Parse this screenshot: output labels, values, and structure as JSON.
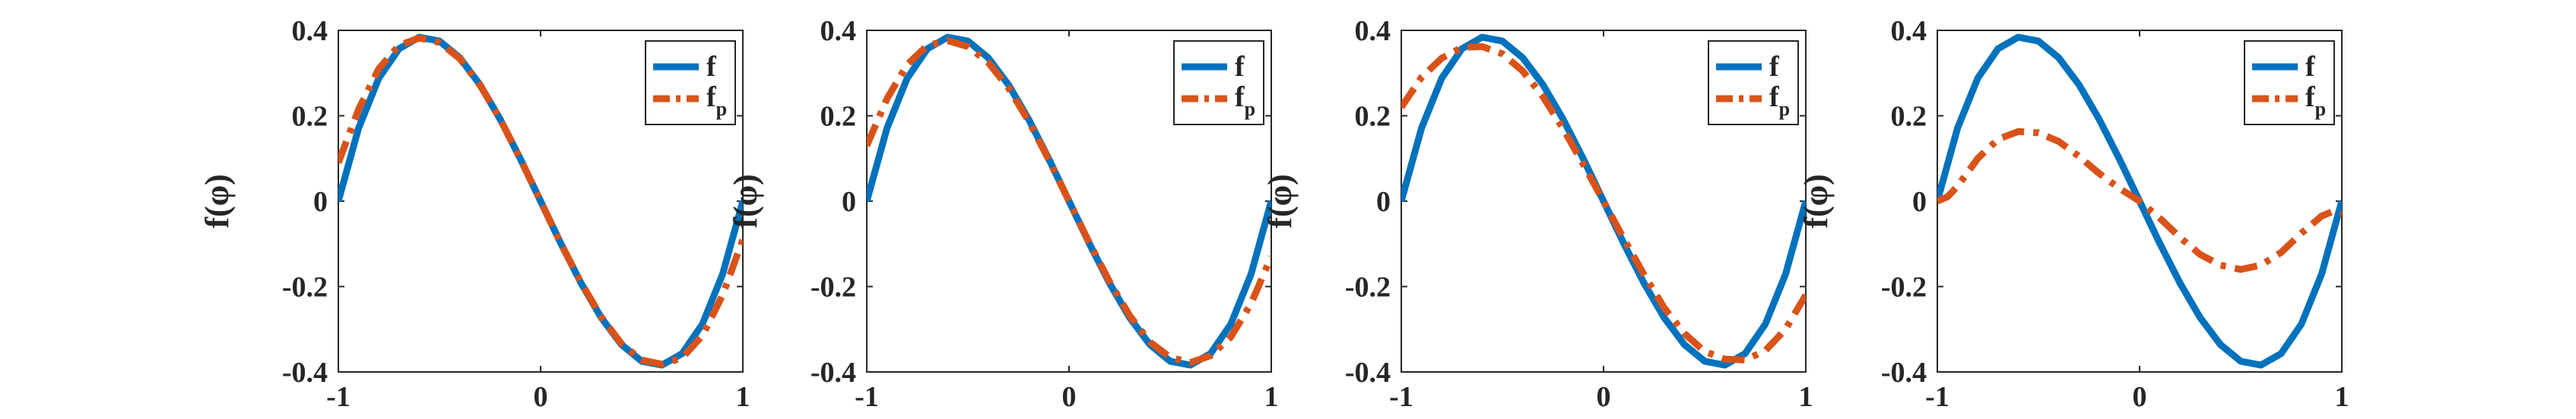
{
  "colors": {
    "f": "#0072BD",
    "fp": "#D95319"
  },
  "chart_data": [
    {
      "type": "line",
      "xlim": [
        -1,
        1
      ],
      "ylim": [
        -0.4,
        0.4
      ],
      "xticks": [
        "-1",
        "0",
        "1"
      ],
      "yticks": [
        "0.4",
        "0.2",
        "0",
        "-0.2",
        "-0.4"
      ],
      "ylabel": "f(φ)",
      "legend_placement": "top-right",
      "series": [
        {
          "name": "f",
          "style": "solid",
          "x": [
            -1,
            -0.9,
            -0.8,
            -0.7,
            -0.6,
            -0.5,
            -0.4,
            -0.3,
            -0.2,
            -0.1,
            0,
            0.1,
            0.2,
            0.3,
            0.4,
            0.5,
            0.6,
            0.7,
            0.8,
            0.9,
            1
          ],
          "y": [
            0,
            0.171,
            0.288,
            0.357,
            0.384,
            0.375,
            0.336,
            0.273,
            0.192,
            0.099,
            0,
            -0.099,
            -0.192,
            -0.273,
            -0.336,
            -0.375,
            -0.384,
            -0.357,
            -0.288,
            -0.171,
            0
          ]
        },
        {
          "name": "fp",
          "style": "dashdot",
          "x": [
            -1,
            -0.9,
            -0.8,
            -0.7,
            -0.6,
            -0.5,
            -0.4,
            -0.3,
            -0.2,
            -0.1,
            0,
            0.1,
            0.2,
            0.3,
            0.4,
            0.5,
            0.6,
            0.7,
            0.8,
            0.9,
            1
          ],
          "y": [
            0.09,
            0.215,
            0.31,
            0.365,
            0.382,
            0.372,
            0.334,
            0.272,
            0.192,
            0.099,
            0,
            -0.099,
            -0.191,
            -0.271,
            -0.334,
            -0.372,
            -0.382,
            -0.367,
            -0.315,
            -0.22,
            -0.09
          ]
        }
      ]
    },
    {
      "type": "line",
      "xlim": [
        -1,
        1
      ],
      "ylim": [
        -0.4,
        0.4
      ],
      "xticks": [
        "-1",
        "0",
        "1"
      ],
      "yticks": [
        "0.4",
        "0.2",
        "0",
        "-0.2",
        "-0.4"
      ],
      "ylabel": "f(φ)",
      "legend_placement": "top-right",
      "series": [
        {
          "name": "f",
          "style": "solid",
          "x": [
            -1,
            -0.9,
            -0.8,
            -0.7,
            -0.6,
            -0.5,
            -0.4,
            -0.3,
            -0.2,
            -0.1,
            0,
            0.1,
            0.2,
            0.3,
            0.4,
            0.5,
            0.6,
            0.7,
            0.8,
            0.9,
            1
          ],
          "y": [
            0,
            0.171,
            0.288,
            0.357,
            0.384,
            0.375,
            0.336,
            0.273,
            0.192,
            0.099,
            0,
            -0.099,
            -0.192,
            -0.273,
            -0.336,
            -0.375,
            -0.384,
            -0.357,
            -0.288,
            -0.171,
            0
          ]
        },
        {
          "name": "fp",
          "style": "dashdot",
          "x": [
            -1,
            -0.9,
            -0.8,
            -0.7,
            -0.6,
            -0.5,
            -0.4,
            -0.3,
            -0.2,
            -0.1,
            0,
            0.1,
            0.2,
            0.3,
            0.4,
            0.5,
            0.6,
            0.7,
            0.8,
            0.9,
            1
          ],
          "y": [
            0.13,
            0.24,
            0.32,
            0.365,
            0.376,
            0.362,
            0.325,
            0.266,
            0.188,
            0.097,
            0,
            -0.097,
            -0.188,
            -0.268,
            -0.33,
            -0.366,
            -0.378,
            -0.362,
            -0.318,
            -0.24,
            -0.13
          ]
        }
      ]
    },
    {
      "type": "line",
      "xlim": [
        -1,
        1
      ],
      "ylim": [
        -0.4,
        0.4
      ],
      "xticks": [
        "-1",
        "0",
        "1"
      ],
      "yticks": [
        "0.4",
        "0.2",
        "0",
        "-0.2",
        "-0.4"
      ],
      "ylabel": "f(φ)",
      "legend_placement": "top-right",
      "series": [
        {
          "name": "f",
          "style": "solid",
          "x": [
            -1,
            -0.9,
            -0.8,
            -0.7,
            -0.6,
            -0.5,
            -0.4,
            -0.3,
            -0.2,
            -0.1,
            0,
            0.1,
            0.2,
            0.3,
            0.4,
            0.5,
            0.6,
            0.7,
            0.8,
            0.9,
            1
          ],
          "y": [
            0,
            0.171,
            0.288,
            0.357,
            0.384,
            0.375,
            0.336,
            0.273,
            0.192,
            0.099,
            0,
            -0.099,
            -0.192,
            -0.273,
            -0.336,
            -0.375,
            -0.384,
            -0.357,
            -0.288,
            -0.171,
            0
          ]
        },
        {
          "name": "fp",
          "style": "dashdot",
          "x": [
            -1,
            -0.9,
            -0.8,
            -0.7,
            -0.6,
            -0.5,
            -0.4,
            -0.3,
            -0.2,
            -0.1,
            0,
            0.1,
            0.2,
            0.3,
            0.4,
            0.5,
            0.6,
            0.7,
            0.8,
            0.9,
            1
          ],
          "y": [
            0.22,
            0.29,
            0.335,
            0.36,
            0.362,
            0.345,
            0.305,
            0.245,
            0.17,
            0.086,
            0,
            -0.088,
            -0.172,
            -0.25,
            -0.31,
            -0.352,
            -0.37,
            -0.372,
            -0.35,
            -0.3,
            -0.22
          ]
        }
      ]
    },
    {
      "type": "line",
      "xlim": [
        -1,
        1
      ],
      "ylim": [
        -0.4,
        0.4
      ],
      "xticks": [
        "-1",
        "0",
        "1"
      ],
      "yticks": [
        "0.4",
        "0.2",
        "0",
        "-0.2",
        "-0.4"
      ],
      "ylabel": "f(φ)",
      "legend_placement": "top-right",
      "series": [
        {
          "name": "f",
          "style": "solid",
          "x": [
            -1,
            -0.9,
            -0.8,
            -0.7,
            -0.6,
            -0.5,
            -0.4,
            -0.3,
            -0.2,
            -0.1,
            0,
            0.1,
            0.2,
            0.3,
            0.4,
            0.5,
            0.6,
            0.7,
            0.8,
            0.9,
            1
          ],
          "y": [
            0,
            0.171,
            0.288,
            0.357,
            0.384,
            0.375,
            0.336,
            0.273,
            0.192,
            0.099,
            0,
            -0.099,
            -0.192,
            -0.273,
            -0.336,
            -0.375,
            -0.384,
            -0.357,
            -0.288,
            -0.171,
            0
          ]
        },
        {
          "name": "fp",
          "style": "dashdot",
          "x": [
            -1,
            -0.95,
            -0.9,
            -0.8,
            -0.7,
            -0.6,
            -0.5,
            -0.4,
            -0.3,
            -0.2,
            -0.1,
            0,
            0.1,
            0.2,
            0.3,
            0.4,
            0.5,
            0.6,
            0.7,
            0.8,
            0.9,
            0.95,
            1
          ],
          "y": [
            0,
            0.01,
            0.035,
            0.1,
            0.145,
            0.163,
            0.16,
            0.14,
            0.105,
            0.065,
            0.03,
            0,
            -0.04,
            -0.085,
            -0.125,
            -0.15,
            -0.16,
            -0.15,
            -0.12,
            -0.075,
            -0.035,
            -0.025,
            -0.03
          ]
        }
      ]
    }
  ]
}
